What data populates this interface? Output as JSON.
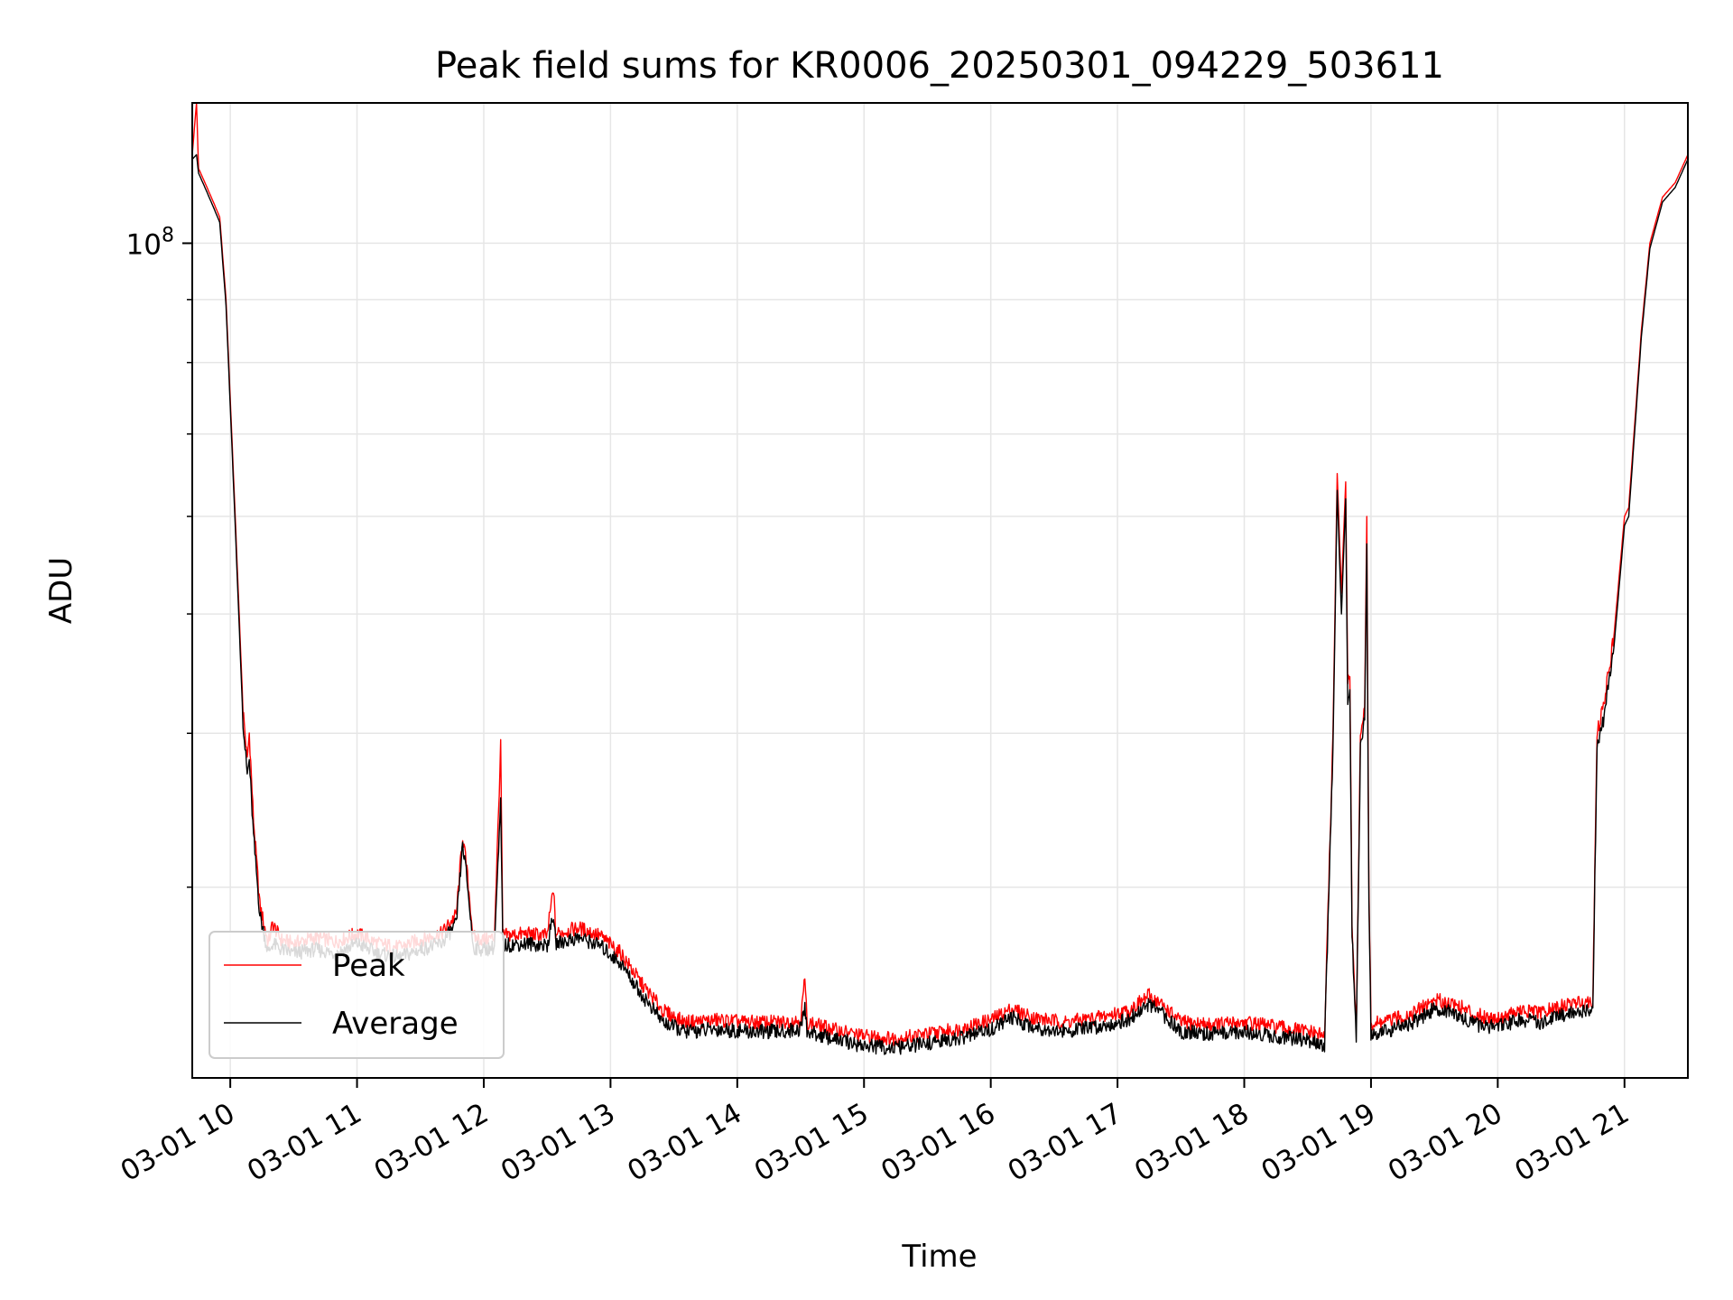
{
  "chart_data": {
    "type": "line",
    "title": "Peak field sums for KR0006_20250301_094229_503611",
    "xlabel": "Time",
    "ylabel": "ADU",
    "yscale": "log",
    "xlim": [
      "03-01 09:42",
      "03-01 21:30"
    ],
    "ylim": [
      21000000,
      130000000
    ],
    "x_ticks": [
      "03-01 10",
      "03-01 11",
      "03-01 12",
      "03-01 13",
      "03-01 14",
      "03-01 15",
      "03-01 16",
      "03-01 17",
      "03-01 18",
      "03-01 19",
      "03-01 20",
      "03-01 21"
    ],
    "y_ticks": [
      {
        "value": 100000000,
        "label": "10",
        "exponent": "8"
      }
    ],
    "grid": true,
    "legend_position": "lower-left",
    "colors": {
      "peak": "#ff0000",
      "average": "#000000",
      "grid": "#e6e6e6"
    },
    "series": [
      {
        "name": "Peak",
        "color": "#ff0000",
        "points": [
          [
            "03-01 09:42",
            118000000
          ],
          [
            "03-01 09:44",
            130000000
          ],
          [
            "03-01 09:45",
            115000000
          ],
          [
            "03-01 09:48",
            112000000
          ],
          [
            "03-01 09:52",
            108000000
          ],
          [
            "03-01 09:55",
            105000000
          ],
          [
            "03-01 09:58",
            90000000
          ],
          [
            "03-01 10:02",
            62000000
          ],
          [
            "03-01 10:06",
            42000000
          ],
          [
            "03-01 10:08",
            38000000
          ],
          [
            "03-01 10:09",
            40000000
          ],
          [
            "03-01 10:11",
            34000000
          ],
          [
            "03-01 10:14",
            29000000
          ],
          [
            "03-01 10:18",
            27000000
          ],
          [
            "03-01 10:20",
            28000000
          ],
          [
            "03-01 10:24",
            27200000
          ],
          [
            "03-01 10:30",
            27000000
          ],
          [
            "03-01 10:40",
            27300000
          ],
          [
            "03-01 10:50",
            27100000
          ],
          [
            "03-01 11:00",
            27500000
          ],
          [
            "03-01 11:10",
            27000000
          ],
          [
            "03-01 11:20",
            26800000
          ],
          [
            "03-01 11:30",
            27200000
          ],
          [
            "03-01 11:40",
            27500000
          ],
          [
            "03-01 11:47",
            28500000
          ],
          [
            "03-01 11:50",
            33000000
          ],
          [
            "03-01 11:52",
            31000000
          ],
          [
            "03-01 11:55",
            27300000
          ],
          [
            "03-01 12:00",
            27200000
          ],
          [
            "03-01 12:05",
            27300000
          ],
          [
            "03-01 12:08",
            39000000
          ],
          [
            "03-01 12:09",
            27400000
          ],
          [
            "03-01 12:20",
            27500000
          ],
          [
            "03-01 12:30",
            27400000
          ],
          [
            "03-01 12:33",
            30000000
          ],
          [
            "03-01 12:34",
            27500000
          ],
          [
            "03-01 12:45",
            27800000
          ],
          [
            "03-01 12:55",
            27400000
          ],
          [
            "03-01 13:05",
            26500000
          ],
          [
            "03-01 13:15",
            25000000
          ],
          [
            "03-01 13:25",
            23800000
          ],
          [
            "03-01 13:35",
            23300000
          ],
          [
            "03-01 13:50",
            23400000
          ],
          [
            "03-01 14:05",
            23300000
          ],
          [
            "03-01 14:20",
            23300000
          ],
          [
            "03-01 14:30",
            23400000
          ],
          [
            "03-01 14:32",
            25300000
          ],
          [
            "03-01 14:33",
            23300000
          ],
          [
            "03-01 14:45",
            23000000
          ],
          [
            "03-01 15:00",
            22700000
          ],
          [
            "03-01 15:15",
            22600000
          ],
          [
            "03-01 15:30",
            22800000
          ],
          [
            "03-01 15:45",
            23000000
          ],
          [
            "03-01 16:00",
            23400000
          ],
          [
            "03-01 16:10",
            23900000
          ],
          [
            "03-01 16:20",
            23500000
          ],
          [
            "03-01 16:35",
            23300000
          ],
          [
            "03-01 16:50",
            23500000
          ],
          [
            "03-01 17:05",
            23800000
          ],
          [
            "03-01 17:15",
            24500000
          ],
          [
            "03-01 17:22",
            24000000
          ],
          [
            "03-01 17:30",
            23300000
          ],
          [
            "03-01 17:45",
            23200000
          ],
          [
            "03-01 18:00",
            23300000
          ],
          [
            "03-01 18:15",
            23100000
          ],
          [
            "03-01 18:30",
            22900000
          ],
          [
            "03-01 18:38",
            22700000
          ],
          [
            "03-01 18:42",
            40000000
          ],
          [
            "03-01 18:44",
            65000000
          ],
          [
            "03-01 18:46",
            52000000
          ],
          [
            "03-01 18:48",
            64000000
          ],
          [
            "03-01 18:49",
            44000000
          ],
          [
            "03-01 18:50",
            45000000
          ],
          [
            "03-01 18:51",
            28000000
          ],
          [
            "03-01 18:53",
            22800000
          ],
          [
            "03-01 18:55",
            40000000
          ],
          [
            "03-01 18:57",
            42000000
          ],
          [
            "03-01 18:58",
            60000000
          ],
          [
            "03-01 18:59",
            30000000
          ],
          [
            "03-01 19:00",
            23200000
          ],
          [
            "03-01 19:10",
            23400000
          ],
          [
            "03-01 19:20",
            23700000
          ],
          [
            "03-01 19:30",
            24300000
          ],
          [
            "03-01 19:40",
            24100000
          ],
          [
            "03-01 19:50",
            23600000
          ],
          [
            "03-01 20:00",
            23500000
          ],
          [
            "03-01 20:10",
            23800000
          ],
          [
            "03-01 20:20",
            23700000
          ],
          [
            "03-01 20:30",
            24000000
          ],
          [
            "03-01 20:40",
            24200000
          ],
          [
            "03-01 20:45",
            24300000
          ],
          [
            "03-01 20:47",
            40000000
          ],
          [
            "03-01 20:50",
            42000000
          ],
          [
            "03-01 20:55",
            48000000
          ],
          [
            "03-01 21:00",
            60000000
          ],
          [
            "03-01 21:02",
            61000000
          ],
          [
            "03-01 21:05",
            72000000
          ],
          [
            "03-01 21:08",
            85000000
          ],
          [
            "03-01 21:12",
            100000000
          ],
          [
            "03-01 21:18",
            109000000
          ],
          [
            "03-01 21:24",
            112000000
          ],
          [
            "03-01 21:30",
            118000000
          ]
        ]
      },
      {
        "name": "Average",
        "color": "#000000",
        "points": [
          [
            "03-01 09:42",
            117000000
          ],
          [
            "03-01 09:44",
            118000000
          ],
          [
            "03-01 09:45",
            114000000
          ],
          [
            "03-01 09:48",
            111000000
          ],
          [
            "03-01 09:52",
            107000000
          ],
          [
            "03-01 09:55",
            104000000
          ],
          [
            "03-01 09:58",
            89000000
          ],
          [
            "03-01 10:02",
            61000000
          ],
          [
            "03-01 10:06",
            41000000
          ],
          [
            "03-01 10:08",
            37000000
          ],
          [
            "03-01 10:09",
            38000000
          ],
          [
            "03-01 10:11",
            33000000
          ],
          [
            "03-01 10:14",
            28500000
          ],
          [
            "03-01 10:18",
            26500000
          ],
          [
            "03-01 10:20",
            27000000
          ],
          [
            "03-01 10:24",
            26700000
          ],
          [
            "03-01 10:30",
            26500000
          ],
          [
            "03-01 10:40",
            26700000
          ],
          [
            "03-01 10:50",
            26500000
          ],
          [
            "03-01 11:00",
            27000000
          ],
          [
            "03-01 11:10",
            26500000
          ],
          [
            "03-01 11:20",
            26300000
          ],
          [
            "03-01 11:30",
            26700000
          ],
          [
            "03-01 11:40",
            27000000
          ],
          [
            "03-01 11:47",
            28000000
          ],
          [
            "03-01 11:50",
            32500000
          ],
          [
            "03-01 11:52",
            30500000
          ],
          [
            "03-01 11:55",
            26800000
          ],
          [
            "03-01 12:00",
            26700000
          ],
          [
            "03-01 12:05",
            26800000
          ],
          [
            "03-01 12:08",
            35000000
          ],
          [
            "03-01 12:09",
            26900000
          ],
          [
            "03-01 12:20",
            27000000
          ],
          [
            "03-01 12:30",
            26900000
          ],
          [
            "03-01 12:33",
            28500000
          ],
          [
            "03-01 12:34",
            27000000
          ],
          [
            "03-01 12:45",
            27300000
          ],
          [
            "03-01 12:55",
            26900000
          ],
          [
            "03-01 13:05",
            26000000
          ],
          [
            "03-01 13:15",
            24500000
          ],
          [
            "03-01 13:25",
            23300000
          ],
          [
            "03-01 13:35",
            22900000
          ],
          [
            "03-01 13:50",
            23000000
          ],
          [
            "03-01 14:05",
            22900000
          ],
          [
            "03-01 14:20",
            22900000
          ],
          [
            "03-01 14:30",
            23000000
          ],
          [
            "03-01 14:32",
            24000000
          ],
          [
            "03-01 14:33",
            22900000
          ],
          [
            "03-01 14:45",
            22600000
          ],
          [
            "03-01 15:00",
            22300000
          ],
          [
            "03-01 15:15",
            22200000
          ],
          [
            "03-01 15:30",
            22400000
          ],
          [
            "03-01 15:45",
            22600000
          ],
          [
            "03-01 16:00",
            23000000
          ],
          [
            "03-01 16:10",
            23500000
          ],
          [
            "03-01 16:20",
            23100000
          ],
          [
            "03-01 16:35",
            22900000
          ],
          [
            "03-01 16:50",
            23100000
          ],
          [
            "03-01 17:05",
            23400000
          ],
          [
            "03-01 17:15",
            24100000
          ],
          [
            "03-01 17:22",
            23600000
          ],
          [
            "03-01 17:30",
            22900000
          ],
          [
            "03-01 17:45",
            22800000
          ],
          [
            "03-01 18:00",
            22900000
          ],
          [
            "03-01 18:15",
            22700000
          ],
          [
            "03-01 18:30",
            22500000
          ],
          [
            "03-01 18:38",
            22300000
          ],
          [
            "03-01 18:42",
            39000000
          ],
          [
            "03-01 18:44",
            63000000
          ],
          [
            "03-01 18:46",
            50000000
          ],
          [
            "03-01 18:48",
            62000000
          ],
          [
            "03-01 18:49",
            42000000
          ],
          [
            "03-01 18:50",
            43000000
          ],
          [
            "03-01 18:51",
            27500000
          ],
          [
            "03-01 18:53",
            22400000
          ],
          [
            "03-01 18:55",
            39000000
          ],
          [
            "03-01 18:57",
            41000000
          ],
          [
            "03-01 18:58",
            57000000
          ],
          [
            "03-01 18:59",
            29000000
          ],
          [
            "03-01 19:00",
            22800000
          ],
          [
            "03-01 19:10",
            23000000
          ],
          [
            "03-01 19:20",
            23300000
          ],
          [
            "03-01 19:30",
            23900000
          ],
          [
            "03-01 19:40",
            23700000
          ],
          [
            "03-01 19:50",
            23200000
          ],
          [
            "03-01 20:00",
            23100000
          ],
          [
            "03-01 20:10",
            23400000
          ],
          [
            "03-01 20:20",
            23300000
          ],
          [
            "03-01 20:30",
            23600000
          ],
          [
            "03-01 20:40",
            23800000
          ],
          [
            "03-01 20:45",
            23900000
          ],
          [
            "03-01 20:47",
            39000000
          ],
          [
            "03-01 20:50",
            41000000
          ],
          [
            "03-01 20:55",
            47000000
          ],
          [
            "03-01 21:00",
            59000000
          ],
          [
            "03-01 21:02",
            60000000
          ],
          [
            "03-01 21:05",
            71000000
          ],
          [
            "03-01 21:08",
            84000000
          ],
          [
            "03-01 21:12",
            99000000
          ],
          [
            "03-01 21:18",
            108000000
          ],
          [
            "03-01 21:24",
            111000000
          ],
          [
            "03-01 21:30",
            117000000
          ]
        ]
      }
    ]
  }
}
